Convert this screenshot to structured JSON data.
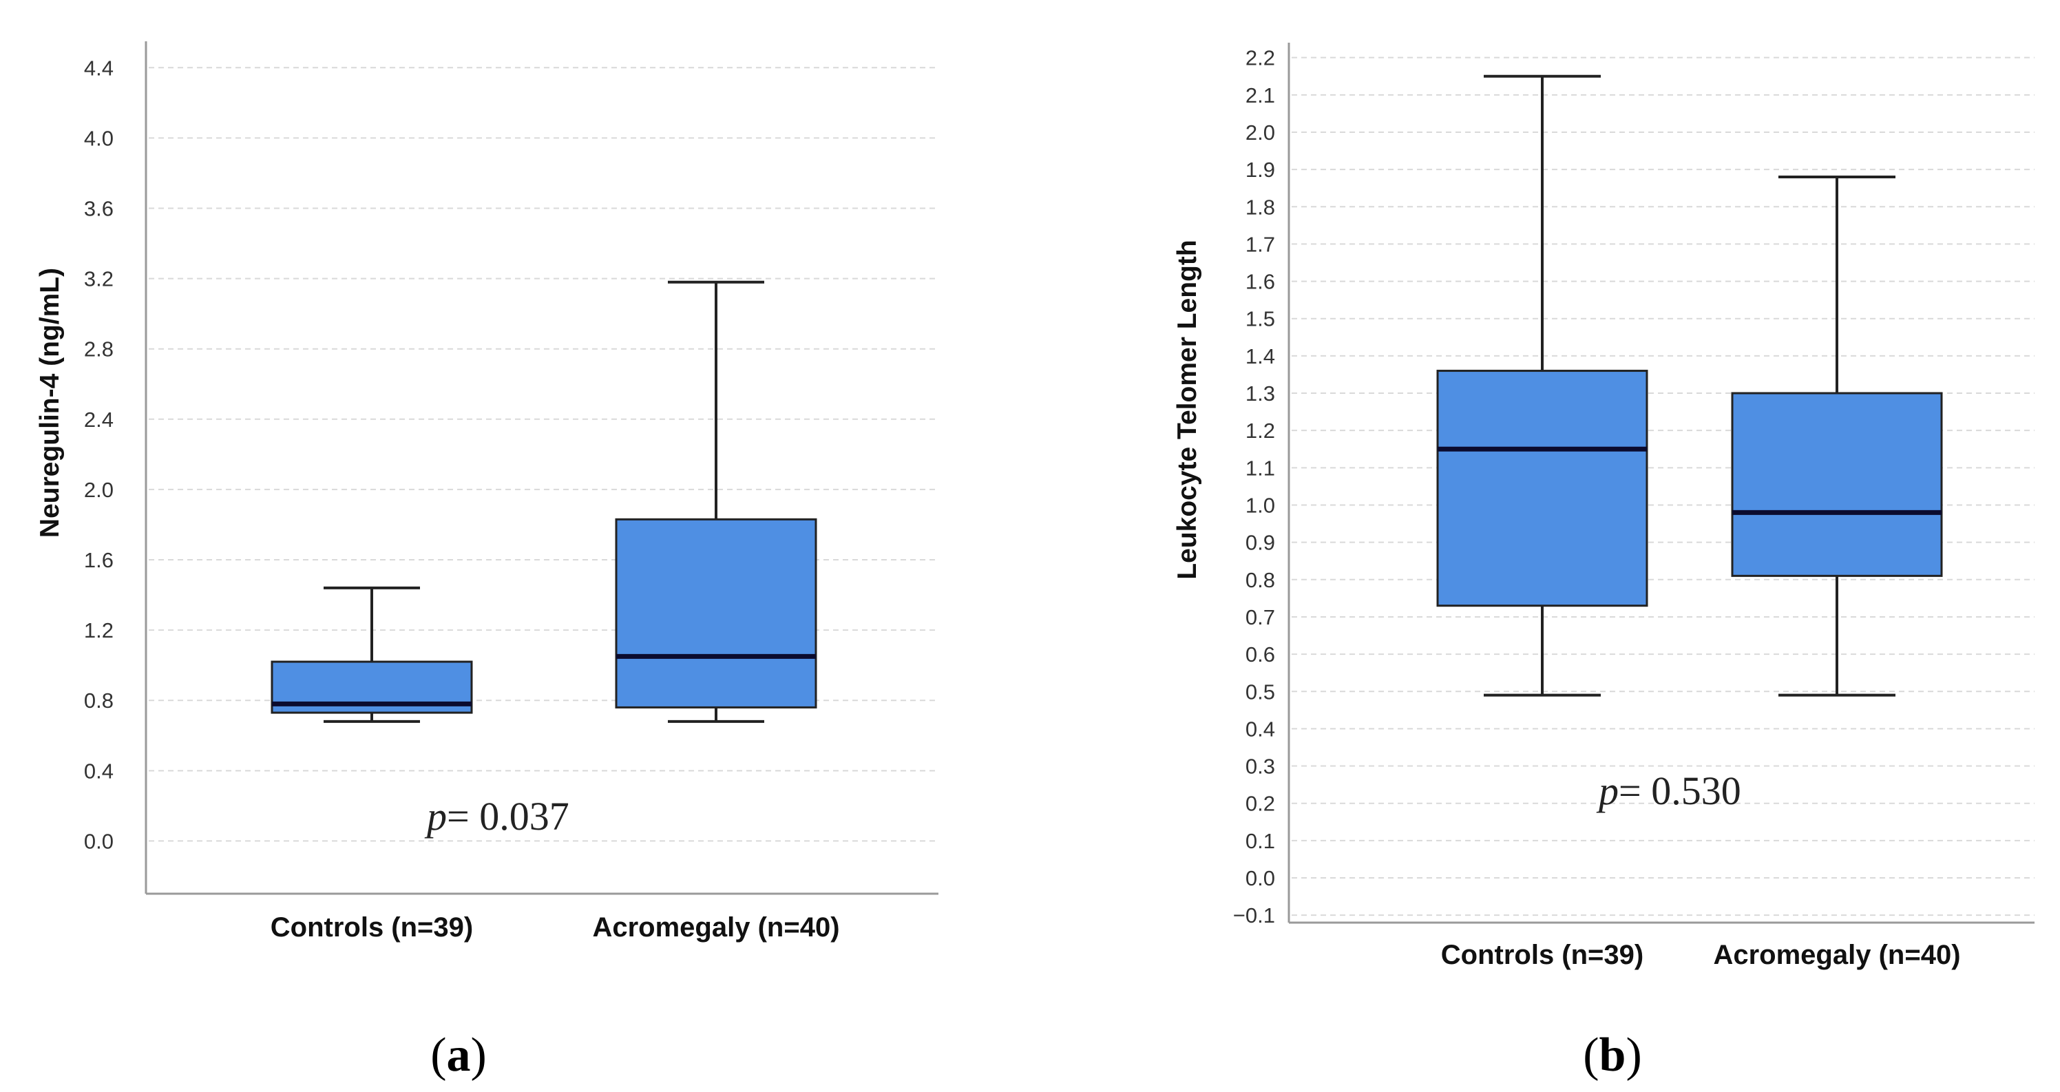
{
  "colors": {
    "box_fill": "#4F8FE3",
    "box_stroke": "#222222",
    "median": "#0B0B2E",
    "grid": "#D9D9D9",
    "axis": "#9A9A9A"
  },
  "chart_data": [
    {
      "type": "box",
      "panel_label": "a",
      "ylabel": "Neuregulin-4 (ng/mL)",
      "ylim": [
        -0.3,
        4.55
      ],
      "yticks": [
        0.0,
        0.4,
        0.8,
        1.2,
        1.6,
        2.0,
        2.4,
        2.8,
        3.2,
        3.6,
        4.0,
        4.4
      ],
      "ytick_labels": [
        "0.0",
        "0.4",
        "0.8",
        "1.2",
        "1.6",
        "2.0",
        "2.4",
        "2.8",
        "3.2",
        "3.6",
        "4.0",
        "4.4"
      ],
      "categories": [
        "Controls (n=39)",
        "Acromegaly (n=40)"
      ],
      "boxes": [
        {
          "whisker_low": 0.68,
          "q1": 0.73,
          "median": 0.78,
          "q3": 1.02,
          "whisker_high": 1.44
        },
        {
          "whisker_low": 0.68,
          "q1": 0.76,
          "median": 1.05,
          "q3": 1.83,
          "whisker_high": 3.18
        }
      ],
      "annotation": {
        "prefix": "p",
        "text": "= 0.037"
      }
    },
    {
      "type": "box",
      "panel_label": "b",
      "ylabel": "Leukocyte Telomer Length",
      "ylim": [
        -0.12,
        2.24
      ],
      "yticks": [
        -0.1,
        0.0,
        0.1,
        0.2,
        0.3,
        0.4,
        0.5,
        0.6,
        0.7,
        0.8,
        0.9,
        1.0,
        1.1,
        1.2,
        1.3,
        1.4,
        1.5,
        1.6,
        1.7,
        1.8,
        1.9,
        2.0,
        2.1,
        2.2
      ],
      "ytick_labels": [
        "−0.1",
        "0.0",
        "0.1",
        "0.2",
        "0.3",
        "0.4",
        "0.5",
        "0.6",
        "0.7",
        "0.8",
        "0.9",
        "1.0",
        "1.1",
        "1.2",
        "1.3",
        "1.4",
        "1.5",
        "1.6",
        "1.7",
        "1.8",
        "1.9",
        "2.0",
        "2.1",
        "2.2"
      ],
      "categories": [
        "Controls (n=39)",
        "Acromegaly (n=40)"
      ],
      "boxes": [
        {
          "whisker_low": 0.49,
          "q1": 0.73,
          "median": 1.15,
          "q3": 1.36,
          "whisker_high": 2.15
        },
        {
          "whisker_low": 0.49,
          "q1": 0.81,
          "median": 0.98,
          "q3": 1.3,
          "whisker_high": 1.88
        }
      ],
      "annotation": {
        "prefix": "p",
        "text": "= 0.530"
      }
    }
  ]
}
